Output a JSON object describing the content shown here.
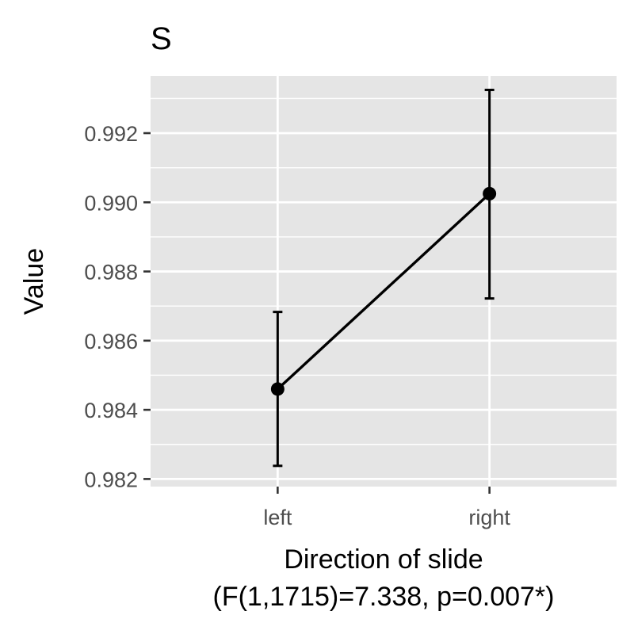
{
  "chart_data": {
    "type": "line",
    "title": "S",
    "xlabel_line1": "Direction of slide",
    "xlabel_line2": "(F(1,1715)=7.338, p=0.007*)",
    "ylabel": "Value",
    "categories": [
      "left",
      "right"
    ],
    "series": [
      {
        "values": [
          0.9846,
          0.99025
        ],
        "error_low": [
          0.98238,
          0.98722
        ],
        "error_high": [
          0.98683,
          0.99325
        ]
      }
    ],
    "ylim": [
      0.98178,
      0.99365
    ],
    "yticks": [
      0.982,
      0.984,
      0.986,
      0.988,
      0.99,
      0.992
    ],
    "ytick_labels": [
      "0.982",
      "0.984",
      "0.986",
      "0.988",
      "0.990",
      "0.992"
    ],
    "grid": true,
    "colors": {
      "panel_background": "#e5e5e5",
      "grid_line": "#ffffff",
      "series": "#000000",
      "tick_text": "#4d4d4d",
      "tick_mark": "#333333"
    }
  }
}
